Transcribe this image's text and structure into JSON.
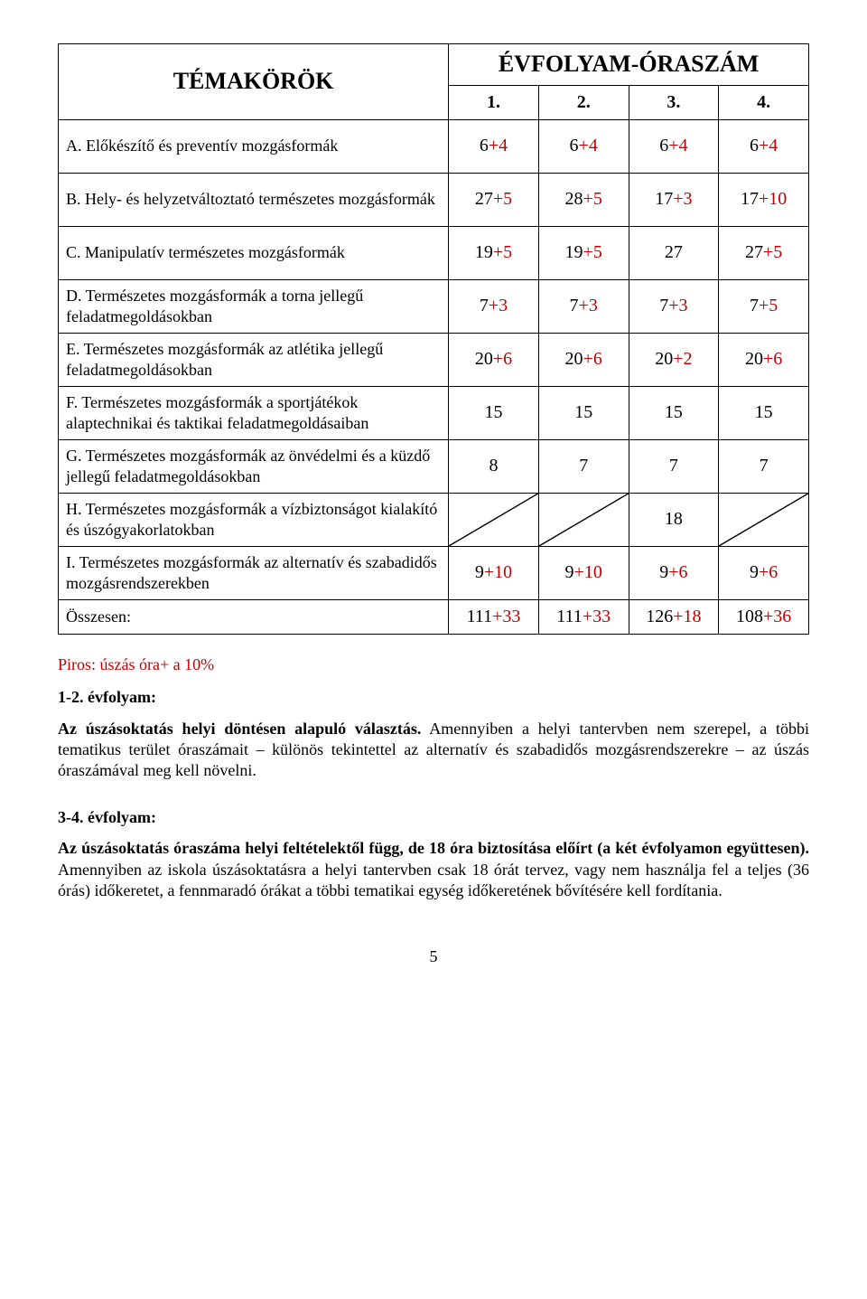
{
  "header": {
    "topics_label": "TÉMAKÖRÖK",
    "evfolyam_label": "ÉVFOLYAM-ÓRASZÁM",
    "cols": [
      "1.",
      "2.",
      "3.",
      "4."
    ]
  },
  "rows": [
    {
      "label": "A. Előkészítő és preventív mozgásformák",
      "vals": [
        {
          "base": "6",
          "accent": "+4"
        },
        {
          "base": "6",
          "accent": "+4"
        },
        {
          "base": "6",
          "accent": "+4"
        },
        {
          "base": "6",
          "accent": "+4"
        }
      ]
    },
    {
      "label": "B. Hely- és helyzetváltoztató természetes mozgásformák",
      "vals": [
        {
          "base": "27",
          "accent": "+5"
        },
        {
          "base": "28",
          "accent": "+5"
        },
        {
          "base": "17",
          "accent": "+3"
        },
        {
          "base": "17",
          "accent": "+10"
        }
      ]
    },
    {
      "label": "C. Manipulatív természetes mozgásformák",
      "vals": [
        {
          "base": "19",
          "accent": "+5"
        },
        {
          "base": "19",
          "accent": "+5"
        },
        {
          "base": "27",
          "accent": ""
        },
        {
          "base": "27",
          "accent": "+5"
        }
      ]
    },
    {
      "label": "D. Természetes mozgásformák a torna jellegű feladatmegoldásokban",
      "vals": [
        {
          "base": "7",
          "accent": "+3"
        },
        {
          "base": "7",
          "accent": "+3"
        },
        {
          "base": "7",
          "accent": "+3"
        },
        {
          "base": "7",
          "accent": "+5"
        }
      ]
    },
    {
      "label": "E. Természetes mozgásformák az atlétika jellegű feladatmegoldásokban",
      "vals": [
        {
          "base": "20",
          "accent": "+6"
        },
        {
          "base": "20",
          "accent": "+6"
        },
        {
          "base": "20",
          "accent": "+2"
        },
        {
          "base": "20",
          "accent": "+6"
        }
      ]
    },
    {
      "label": "F. Természetes mozgásformák a sportjátékok alaptechnikai és taktikai feladatmegoldásaiban",
      "vals": [
        {
          "base": "15",
          "accent": ""
        },
        {
          "base": "15",
          "accent": ""
        },
        {
          "base": "15",
          "accent": ""
        },
        {
          "base": "15",
          "accent": ""
        }
      ]
    },
    {
      "label": "G. Természetes mozgásformák az önvédelmi és a küzdő jellegű feladatmegoldásokban",
      "vals": [
        {
          "base": "8",
          "accent": ""
        },
        {
          "base": "7",
          "accent": ""
        },
        {
          "base": "7",
          "accent": ""
        },
        {
          "base": "7",
          "accent": ""
        }
      ]
    },
    {
      "label": "H. Természetes mozgásformák a vízbiztonságot kialakító és úszógyakorlatokban",
      "slash": true,
      "vals": [
        {
          "base": "",
          "accent": ""
        },
        {
          "base": "",
          "accent": ""
        },
        {
          "base": "18",
          "accent": ""
        },
        {
          "base": "",
          "accent": ""
        }
      ]
    },
    {
      "label": "I. Természetes mozgásformák az alternatív és szabadidős mozgásrendszerekben",
      "vals": [
        {
          "base": "9",
          "accent": "+10"
        },
        {
          "base": "9",
          "accent": "+10"
        },
        {
          "base": "9",
          "accent": "+6"
        },
        {
          "base": "9",
          "accent": "+6"
        }
      ]
    }
  ],
  "total": {
    "label": "Összesen:",
    "vals": [
      {
        "base": "111",
        "accent": "+33"
      },
      {
        "base": "111",
        "accent": "+33"
      },
      {
        "base": "126",
        "accent": "+18"
      },
      {
        "base": "108",
        "accent": "+36"
      }
    ]
  },
  "red_note": "Piros: úszás  óra+ a 10%",
  "s12_head": "1-2. évfolyam:",
  "s12_body_bold": "Az úszásoktatás helyi döntésen alapuló választás.",
  "s12_body_rest": " Amennyiben a helyi tantervben nem szerepel, a többi tematikus terület óraszámait – különös tekintettel az alternatív és szabadidős mozgásrendszerekre – az úszás óraszámával meg kell növelni.",
  "s34_head": "3-4. évfolyam:",
  "s34_body_bold": "Az úszásoktatás óraszáma helyi feltételektől függ, de 18 óra biztosítása előírt (a két évfolyamon együttesen).",
  "s34_body_rest": " Amennyiben az iskola úszásoktatásra a helyi tantervben csak 18 órát tervez, vagy nem használja fel a teljes (36 órás) időkeretet, a fennmaradó órákat a többi tematikai egység időkeretének bővítésére kell fordítania.",
  "page_number": "5",
  "style": {
    "accent_color": "#c00000",
    "text_color": "#000000",
    "background": "#ffffff"
  }
}
